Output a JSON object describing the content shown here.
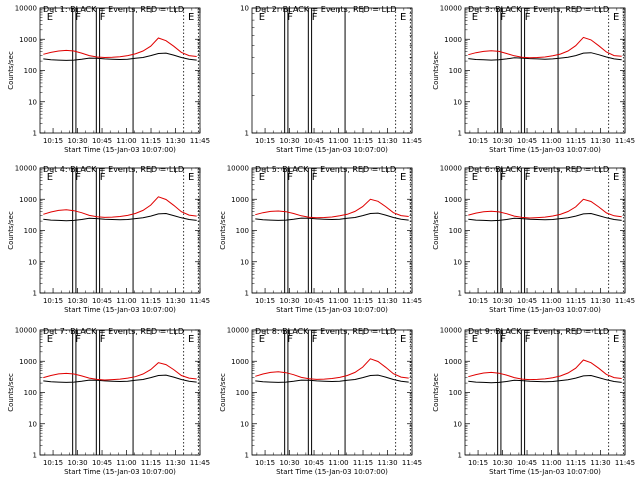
{
  "chart_data": [
    {
      "type": "line",
      "title": "Det 1: BLACK = Events, RED = LLD",
      "ylabel": "Counts/sec",
      "xlabel": "Start Time (15-Jan-03 10:07:00)",
      "yscale": "log",
      "ylim": [
        1,
        10000
      ],
      "y_ticks": [
        "1",
        "10",
        "100",
        "1000",
        "10000"
      ],
      "x_ticks": [
        "10:15",
        "10:30",
        "10:45",
        "11:00",
        "11:15",
        "11:30",
        "11:45"
      ],
      "flags": [
        "E",
        "F",
        "F",
        "E"
      ],
      "series": [
        {
          "color": "#000000",
          "values": [
            235,
            220,
            215,
            210,
            215,
            230,
            250,
            245,
            235,
            230,
            225,
            230,
            245,
            260,
            300,
            350,
            360,
            310,
            260,
            230,
            215
          ]
        },
        {
          "color": "#e00000",
          "values": [
            330,
            380,
            420,
            440,
            420,
            360,
            300,
            270,
            260,
            265,
            275,
            300,
            340,
            420,
            600,
            1100,
            900,
            600,
            380,
            300,
            280
          ]
        }
      ]
    },
    {
      "type": "line",
      "title": "Det 2r BLACK = Events, RED = LLD",
      "ylabel": "",
      "xlabel": "Start Time (15-Jan-03 10:07:00)",
      "yscale": "log",
      "ylim": [
        1,
        10
      ],
      "y_ticks": [
        "1",
        "10"
      ],
      "x_ticks": [
        "10:15",
        "10:30",
        "10:45",
        "11:00",
        "11:15",
        "11:30",
        "11:45"
      ],
      "flags": [
        "E",
        "F",
        "F",
        "E"
      ],
      "series": []
    },
    {
      "type": "line",
      "title": "Det 3: BLACK = Events, RED = LLD",
      "ylabel": "Counts/sec",
      "xlabel": "Start Time (15-Jan-03 10:07:00)",
      "yscale": "log",
      "ylim": [
        1,
        10000
      ],
      "y_ticks": [
        "1",
        "10",
        "100",
        "1000",
        "10000"
      ],
      "x_ticks": [
        "10:15",
        "10:30",
        "10:45",
        "11:00",
        "11:15",
        "11:30",
        "11:45"
      ],
      "flags": [
        "E",
        "F",
        "F",
        "E"
      ],
      "series": [
        {
          "color": "#000000",
          "values": [
            240,
            225,
            220,
            215,
            220,
            235,
            255,
            250,
            240,
            235,
            230,
            235,
            250,
            265,
            300,
            360,
            370,
            320,
            270,
            235,
            220
          ]
        },
        {
          "color": "#e00000",
          "values": [
            320,
            370,
            410,
            430,
            410,
            350,
            295,
            265,
            255,
            260,
            270,
            295,
            335,
            420,
            620,
            1150,
            950,
            620,
            390,
            300,
            285
          ]
        }
      ]
    },
    {
      "type": "line",
      "title": "Det 4: BLACK = Events, RED = LLD",
      "ylabel": "Counts/sec",
      "xlabel": "Start Time (15-Jan-03 10:07:00)",
      "yscale": "log",
      "ylim": [
        1,
        10000
      ],
      "y_ticks": [
        "1",
        "10",
        "100",
        "1000",
        "10000"
      ],
      "x_ticks": [
        "10:15",
        "10:30",
        "10:45",
        "11:00",
        "11:15",
        "11:30",
        "11:45"
      ],
      "flags": [
        "E",
        "F",
        "F",
        "E"
      ],
      "series": [
        {
          "color": "#000000",
          "values": [
            230,
            215,
            210,
            205,
            210,
            225,
            245,
            240,
            230,
            225,
            220,
            225,
            240,
            255,
            290,
            340,
            350,
            300,
            255,
            225,
            210
          ]
        },
        {
          "color": "#e00000",
          "values": [
            330,
            390,
            440,
            460,
            430,
            370,
            305,
            275,
            262,
            268,
            280,
            305,
            350,
            440,
            650,
            1200,
            980,
            640,
            400,
            310,
            290
          ]
        }
      ]
    },
    {
      "type": "line",
      "title": "Det 5: BLACK = Events, RED = LLD",
      "ylabel": "Counts/sec",
      "xlabel": "Start Time (15-Jan-03 10:07:00)",
      "yscale": "log",
      "ylim": [
        1,
        10000
      ],
      "y_ticks": [
        "1",
        "10",
        "100",
        "1000",
        "10000"
      ],
      "x_ticks": [
        "10:15",
        "10:30",
        "10:45",
        "11:00",
        "11:15",
        "11:30",
        "11:45"
      ],
      "flags": [
        "E",
        "F",
        "F",
        "E"
      ],
      "series": [
        {
          "color": "#000000",
          "values": [
            235,
            220,
            215,
            210,
            215,
            230,
            250,
            245,
            235,
            230,
            225,
            230,
            245,
            260,
            300,
            350,
            360,
            310,
            260,
            230,
            215
          ]
        },
        {
          "color": "#e00000",
          "values": [
            320,
            370,
            410,
            420,
            400,
            350,
            295,
            265,
            255,
            260,
            270,
            295,
            330,
            410,
            580,
            1000,
            860,
            580,
            370,
            300,
            280
          ]
        }
      ]
    },
    {
      "type": "line",
      "title": "Det 6: BLACK = Events, RED = LLD",
      "ylabel": "Counts/sec",
      "xlabel": "Start Time (15-Jan-03 10:07:00)",
      "yscale": "log",
      "ylim": [
        1,
        10000
      ],
      "y_ticks": [
        "1",
        "10",
        "100",
        "1000",
        "10000"
      ],
      "x_ticks": [
        "10:15",
        "10:30",
        "10:45",
        "11:00",
        "11:15",
        "11:30",
        "11:45"
      ],
      "flags": [
        "E",
        "F",
        "F",
        "E"
      ],
      "series": [
        {
          "color": "#000000",
          "values": [
            230,
            215,
            210,
            205,
            210,
            225,
            245,
            240,
            230,
            225,
            220,
            225,
            240,
            255,
            290,
            340,
            350,
            300,
            255,
            225,
            210
          ]
        },
        {
          "color": "#e00000",
          "values": [
            310,
            360,
            400,
            415,
            395,
            345,
            290,
            262,
            252,
            258,
            268,
            292,
            328,
            405,
            570,
            1000,
            850,
            570,
            365,
            295,
            275
          ]
        }
      ]
    },
    {
      "type": "line",
      "title": "Det 7: BLACK = Events, RED = LLD",
      "ylabel": "Counts/sec",
      "xlabel": "Start Time (15-Jan-03 10:07:00)",
      "yscale": "log",
      "ylim": [
        1,
        10000
      ],
      "y_ticks": [
        "1",
        "10",
        "100",
        "1000",
        "10000"
      ],
      "x_ticks": [
        "10:15",
        "10:30",
        "10:45",
        "11:00",
        "11:15",
        "11:30",
        "11:45"
      ],
      "flags": [
        "E",
        "F",
        "F",
        "E"
      ],
      "series": [
        {
          "color": "#000000",
          "values": [
            235,
            220,
            215,
            210,
            215,
            230,
            250,
            245,
            235,
            230,
            225,
            230,
            245,
            260,
            300,
            350,
            360,
            310,
            260,
            230,
            215
          ]
        },
        {
          "color": "#e00000",
          "values": [
            300,
            350,
            395,
            410,
            390,
            340,
            290,
            262,
            252,
            258,
            268,
            290,
            320,
            390,
            540,
            900,
            780,
            540,
            350,
            290,
            270
          ]
        }
      ]
    },
    {
      "type": "line",
      "title": "Det 8: BLACK = Events, RED = LLD",
      "ylabel": "Counts/sec",
      "xlabel": "Start Time (15-Jan-03 10:07:00)",
      "yscale": "log",
      "ylim": [
        1,
        10000
      ],
      "y_ticks": [
        "1",
        "10",
        "100",
        "1000",
        "10000"
      ],
      "x_ticks": [
        "10:15",
        "10:30",
        "10:45",
        "11:00",
        "11:15",
        "11:30",
        "11:45"
      ],
      "flags": [
        "E",
        "F",
        "F",
        "E"
      ],
      "series": [
        {
          "color": "#000000",
          "values": [
            235,
            220,
            215,
            210,
            215,
            230,
            250,
            245,
            235,
            230,
            225,
            230,
            245,
            260,
            300,
            350,
            360,
            310,
            260,
            230,
            215
          ]
        },
        {
          "color": "#e00000",
          "values": [
            330,
            390,
            440,
            460,
            430,
            370,
            305,
            275,
            262,
            268,
            280,
            305,
            350,
            440,
            650,
            1200,
            980,
            640,
            400,
            310,
            290
          ]
        }
      ]
    },
    {
      "type": "line",
      "title": "Det 9: BLACK = Events, RED = LLD",
      "ylabel": "Counts/sec",
      "xlabel": "Start Time (15-Jan-03 10:07:00)",
      "yscale": "log",
      "ylim": [
        1,
        10000
      ],
      "y_ticks": [
        "1",
        "10",
        "100",
        "1000",
        "10000"
      ],
      "x_ticks": [
        "10:15",
        "10:30",
        "10:45",
        "11:00",
        "11:15",
        "11:30",
        "11:45"
      ],
      "flags": [
        "E",
        "F",
        "F",
        "E"
      ],
      "series": [
        {
          "color": "#000000",
          "values": [
            230,
            215,
            210,
            205,
            210,
            225,
            245,
            240,
            230,
            225,
            220,
            225,
            240,
            255,
            290,
            340,
            350,
            300,
            255,
            225,
            210
          ]
        },
        {
          "color": "#e00000",
          "values": [
            320,
            375,
            420,
            440,
            415,
            360,
            300,
            268,
            258,
            262,
            272,
            298,
            338,
            420,
            600,
            1100,
            900,
            600,
            380,
            300,
            280
          ]
        }
      ]
    }
  ]
}
